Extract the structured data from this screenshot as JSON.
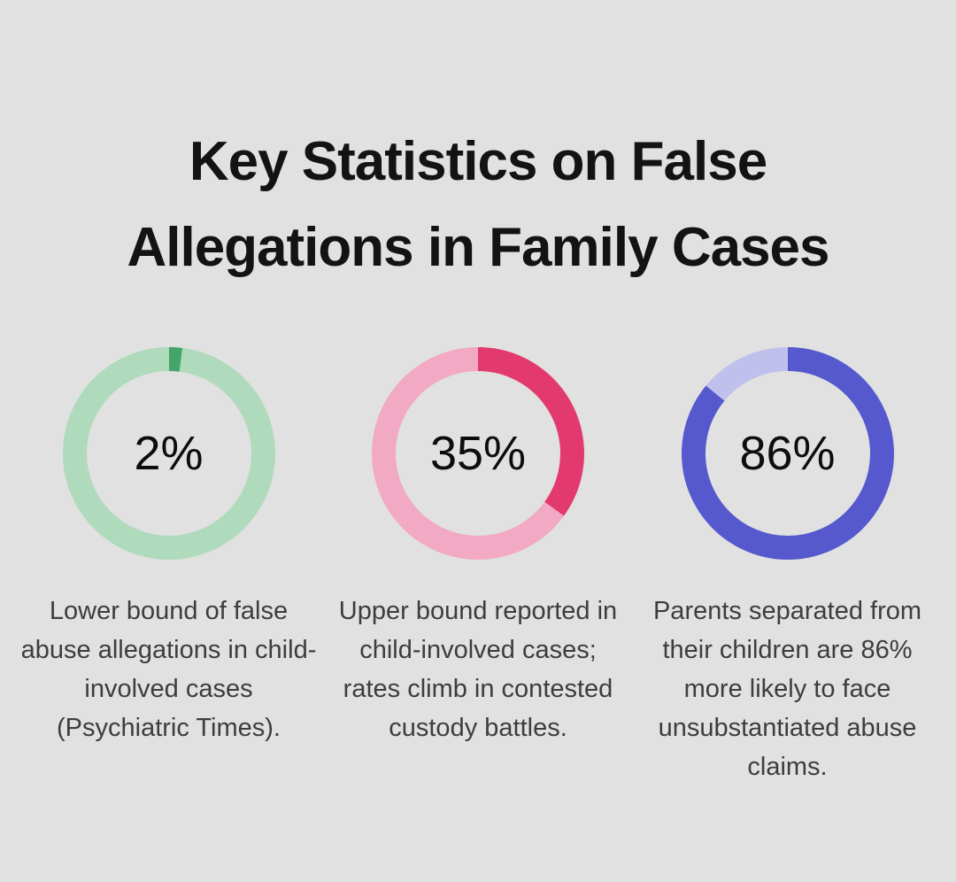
{
  "page": {
    "background_color": "#e0e1e0"
  },
  "title": {
    "text": "Key Statistics on False Allegations in Family Cases",
    "lines": [
      "Key Statistics on False",
      "Allegations in Family Cases"
    ]
  },
  "chart_data": {
    "type": "pie",
    "variant": "donut",
    "title": "Key Statistics on False Allegations in Family Cases",
    "legend_position": "none",
    "charts": [
      {
        "value_percent": 2,
        "label": "2%",
        "caption": "Lower bound of false abuse allegations in child-involved cases (Psychiatric Times).",
        "fill_color": "#44a569",
        "track_color": "#afdabb"
      },
      {
        "value_percent": 35,
        "label": "35%",
        "caption": "Upper bound reported in child-involved cases; rates climb in contested custody battles.",
        "fill_color": "#e23a6e",
        "track_color": "#f2a9c3"
      },
      {
        "value_percent": 86,
        "label": "86%",
        "caption": "Parents separated from their children are 86% more likely to face unsubstantiated abuse claims.",
        "fill_color": "#5659ce",
        "track_color": "#bfc1ec"
      }
    ]
  }
}
